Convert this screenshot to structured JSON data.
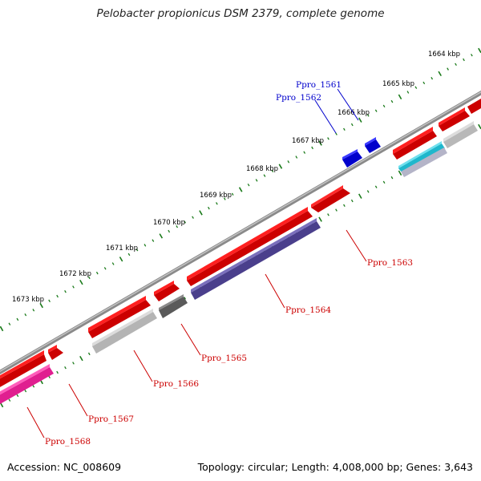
{
  "title": "Pelobacter propionicus DSM 2379, complete genome",
  "footer": {
    "accession": "Accession: NC_008609",
    "topology": "Topology: circular; Length: 4,008,000 bp; Genes: 3,643"
  },
  "scale_labels": [
    "1664 kbp",
    "1665 kbp",
    "1666 kbp",
    "1667 kbp",
    "1668 kbp",
    "1669 kbp",
    "1670 kbp",
    "1671 kbp",
    "1672 kbp",
    "1673 kbp"
  ],
  "gene_labels": [
    {
      "name": "Ppro_1561",
      "color": "#0000cc"
    },
    {
      "name": "Ppro_1562",
      "color": "#0000cc"
    },
    {
      "name": "Ppro_1563",
      "color": "#cc0000"
    },
    {
      "name": "Ppro_1564",
      "color": "#cc0000"
    },
    {
      "name": "Ppro_1565",
      "color": "#cc0000"
    },
    {
      "name": "Ppro_1566",
      "color": "#cc0000"
    },
    {
      "name": "Ppro_1567",
      "color": "#cc0000"
    },
    {
      "name": "Ppro_1568",
      "color": "#cc0000"
    }
  ],
  "colors": {
    "backbone": "#7a7a7a",
    "gene_forward": "#ff0000",
    "gene_blue": "#0000ee",
    "cds_purple": "#4a3f8c",
    "cds_gray": "#bdbdbd",
    "cds_dark": "#555555",
    "cds_magenta": "#ee2a9a",
    "cds_cyan": "#1fb7cc",
    "tick_green": "#1a7a1a"
  }
}
